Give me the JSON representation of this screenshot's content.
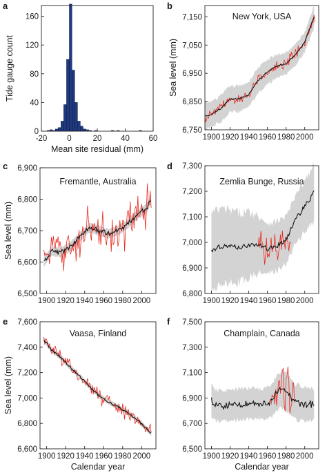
{
  "chart_data": [
    {
      "id": "a",
      "type": "bar",
      "letter": "a",
      "title": "",
      "xlabel": "Mean site residual (mm)",
      "ylabel": "Tide gauge count",
      "xlim": [
        -20,
        60
      ],
      "ylim": [
        0,
        175
      ],
      "xticks": [
        -20,
        0,
        20,
        40,
        60
      ],
      "yticks": [
        0,
        40,
        80,
        120,
        160
      ],
      "bins": [
        {
          "x0": -16,
          "x1": -14,
          "count": 1
        },
        {
          "x0": -14,
          "x1": -12,
          "count": 2
        },
        {
          "x0": -12,
          "x1": -10,
          "count": 1
        },
        {
          "x0": -10,
          "x1": -8,
          "count": 3
        },
        {
          "x0": -8,
          "x1": -6,
          "count": 5
        },
        {
          "x0": -6,
          "x1": -4,
          "count": 14
        },
        {
          "x0": -4,
          "x1": -2,
          "count": 37
        },
        {
          "x0": -2,
          "x1": 0,
          "count": 100
        },
        {
          "x0": 0,
          "x1": 2,
          "count": 177
        },
        {
          "x0": 2,
          "x1": 4,
          "count": 85
        },
        {
          "x0": 4,
          "x1": 6,
          "count": 40
        },
        {
          "x0": 6,
          "x1": 8,
          "count": 14
        },
        {
          "x0": 8,
          "x1": 10,
          "count": 7
        },
        {
          "x0": 10,
          "x1": 12,
          "count": 3
        },
        {
          "x0": 12,
          "x1": 14,
          "count": 2
        },
        {
          "x0": 14,
          "x1": 16,
          "count": 1
        },
        {
          "x0": 18,
          "x1": 20,
          "count": 1
        },
        {
          "x0": 30,
          "x1": 32,
          "count": 1
        },
        {
          "x0": 34,
          "x1": 36,
          "count": 1
        },
        {
          "x0": 50,
          "x1": 52,
          "count": 1
        }
      ]
    },
    {
      "id": "b",
      "type": "line",
      "letter": "b",
      "title": "New York, USA",
      "xlabel": "",
      "ylabel": "Sea level (mm)",
      "xlim": [
        1893,
        2015
      ],
      "ylim": [
        6750,
        7190
      ],
      "xticks": [
        1900,
        1920,
        1940,
        1960,
        1980,
        2000
      ],
      "yticks": [
        6750,
        6850,
        6950,
        7050,
        7150
      ],
      "yticklabels": [
        "6,750",
        "6,850",
        "6,950",
        "7,050",
        "7,150"
      ],
      "obs_range": [
        1893,
        2011
      ],
      "fit_range": [
        1893,
        2010
      ],
      "band_range": [
        1893,
        2010
      ],
      "obs_noise": 14,
      "fit_anchors": [
        [
          1893,
          6800
        ],
        [
          1900,
          6805
        ],
        [
          1910,
          6825
        ],
        [
          1920,
          6860
        ],
        [
          1930,
          6860
        ],
        [
          1940,
          6875
        ],
        [
          1950,
          6925
        ],
        [
          1960,
          6955
        ],
        [
          1970,
          6975
        ],
        [
          1980,
          6985
        ],
        [
          1990,
          7015
        ],
        [
          2000,
          7060
        ],
        [
          2010,
          7150
        ]
      ],
      "band_anchors": [
        [
          1893,
          45
        ],
        [
          1930,
          45
        ],
        [
          1950,
          45
        ],
        [
          2000,
          35
        ],
        [
          2010,
          40
        ]
      ]
    },
    {
      "id": "c",
      "type": "line",
      "letter": "c",
      "title": "Fremantle, Australia",
      "xlabel": "",
      "ylabel": "Sea level (mm)",
      "xlim": [
        1893,
        2015
      ],
      "ylim": [
        6500,
        6900
      ],
      "xticks": [
        1900,
        1920,
        1940,
        1960,
        1980,
        2000
      ],
      "yticks": [
        6500,
        6600,
        6700,
        6800,
        6900
      ],
      "yticklabels": [
        "6,500",
        "6,600",
        "6,700",
        "6,800",
        "6,900"
      ],
      "obs_range": [
        1897,
        2010
      ],
      "fit_range": [
        1897,
        2010
      ],
      "band_range": [
        1897,
        2010
      ],
      "obs_noise": 45,
      "fit_anchors": [
        [
          1897,
          6600
        ],
        [
          1905,
          6635
        ],
        [
          1915,
          6630
        ],
        [
          1925,
          6650
        ],
        [
          1935,
          6680
        ],
        [
          1945,
          6710
        ],
        [
          1955,
          6700
        ],
        [
          1965,
          6690
        ],
        [
          1975,
          6700
        ],
        [
          1985,
          6720
        ],
        [
          1995,
          6750
        ],
        [
          2005,
          6770
        ],
        [
          2010,
          6800
        ]
      ],
      "band_anchors": [
        [
          1897,
          15
        ],
        [
          2010,
          15
        ]
      ]
    },
    {
      "id": "d",
      "type": "line",
      "letter": "d",
      "title": "Zemlia Bunge, Russia",
      "xlabel": "",
      "ylabel": "",
      "xlim": [
        1893,
        2015
      ],
      "ylim": [
        6800,
        7300
      ],
      "xticks": [
        1900,
        1920,
        1940,
        1960,
        1980,
        2000
      ],
      "yticks": [
        6800,
        6900,
        7000,
        7100,
        7200,
        7300
      ],
      "yticklabels": [
        "6,800",
        "6,900",
        "7,000",
        "7,100",
        "7,200",
        "7,300"
      ],
      "obs_range": [
        1950,
        1985
      ],
      "fit_range": [
        1900,
        2010
      ],
      "band_range": [
        1900,
        2010
      ],
      "obs_noise": 50,
      "fit_anchors": [
        [
          1900,
          6965
        ],
        [
          1910,
          6985
        ],
        [
          1920,
          6985
        ],
        [
          1930,
          6980
        ],
        [
          1940,
          6990
        ],
        [
          1950,
          6990
        ],
        [
          1960,
          6975
        ],
        [
          1970,
          6985
        ],
        [
          1980,
          7010
        ],
        [
          1990,
          7090
        ],
        [
          2000,
          7140
        ],
        [
          2010,
          7195
        ]
      ],
      "band_anchors": [
        [
          1900,
          150
        ],
        [
          1940,
          130
        ],
        [
          1960,
          100
        ],
        [
          1990,
          90
        ],
        [
          2010,
          110
        ]
      ]
    },
    {
      "id": "e",
      "type": "line",
      "letter": "e",
      "title": "Vaasa, Finland",
      "xlabel": "Calendar year",
      "ylabel": "Sea level (mm)",
      "xlim": [
        1893,
        2015
      ],
      "ylim": [
        6600,
        7600
      ],
      "xticks": [
        1900,
        1920,
        1940,
        1960,
        1980,
        2000
      ],
      "yticks": [
        6600,
        6800,
        7000,
        7200,
        7400,
        7600
      ],
      "yticklabels": [
        "6,600",
        "6,800",
        "7,000",
        "7,200",
        "7,400",
        "7,600"
      ],
      "obs_range": [
        1897,
        2010
      ],
      "fit_range": [
        1897,
        2010
      ],
      "band_range": [
        1897,
        2010
      ],
      "obs_noise": 45,
      "fit_anchors": [
        [
          1897,
          7460
        ],
        [
          1905,
          7380
        ],
        [
          1915,
          7320
        ],
        [
          1925,
          7240
        ],
        [
          1935,
          7170
        ],
        [
          1945,
          7090
        ],
        [
          1955,
          7020
        ],
        [
          1965,
          6970
        ],
        [
          1975,
          6930
        ],
        [
          1985,
          6890
        ],
        [
          1995,
          6830
        ],
        [
          2005,
          6760
        ],
        [
          2010,
          6720
        ]
      ],
      "band_anchors": [
        [
          1897,
          20
        ],
        [
          2010,
          20
        ]
      ]
    },
    {
      "id": "f",
      "type": "line",
      "letter": "f",
      "title": "Champlain, Canada",
      "xlabel": "Calendar year",
      "ylabel": "",
      "xlim": [
        1893,
        2015
      ],
      "ylim": [
        6500,
        7500
      ],
      "xticks": [
        1900,
        1920,
        1940,
        1960,
        1980,
        2000
      ],
      "yticks": [
        6500,
        6700,
        6900,
        7100,
        7300,
        7500
      ],
      "yticklabels": [
        "6,500",
        "6,700",
        "6,900",
        "7,100",
        "7,300",
        "7,500"
      ],
      "obs_range": [
        1964,
        1990
      ],
      "fit_range": [
        1900,
        2010
      ],
      "band_range": [
        1900,
        2010
      ],
      "obs_noise": 160,
      "fit_anchors": [
        [
          1900,
          6880
        ],
        [
          1905,
          6840
        ],
        [
          1915,
          6840
        ],
        [
          1930,
          6850
        ],
        [
          1945,
          6860
        ],
        [
          1955,
          6850
        ],
        [
          1965,
          6880
        ],
        [
          1970,
          6940
        ],
        [
          1975,
          6970
        ],
        [
          1980,
          6950
        ],
        [
          1990,
          6870
        ],
        [
          2000,
          6850
        ],
        [
          2010,
          6850
        ]
      ],
      "band_anchors": [
        [
          1900,
          120
        ],
        [
          1960,
          120
        ],
        [
          1980,
          150
        ],
        [
          2010,
          120
        ]
      ]
    }
  ],
  "colors": {
    "bars": "#1f3a80",
    "observed": "#e8281e",
    "fit": "#111111",
    "band": "#d3d3d3",
    "axis": "#222222"
  }
}
